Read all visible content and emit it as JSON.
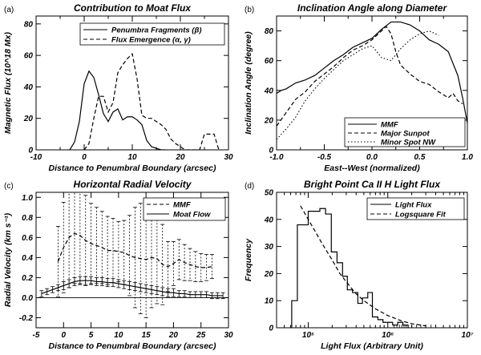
{
  "chart_data": [
    {
      "id": "a",
      "type": "line",
      "panel_label": "(a)",
      "title": "Contribution to Moat Flux",
      "xlabel": "Distance to Penumbral Boundary (arcsec)",
      "ylabel": "Magnetic Flux (10^18 Mx)",
      "xlim": [
        -10,
        30
      ],
      "ylim": [
        0,
        85
      ],
      "xticks": [
        "-10",
        "0",
        "10",
        "20",
        "30"
      ],
      "yticks": [
        "0",
        "20",
        "40",
        "60",
        "80"
      ],
      "legend": {
        "position": "top-right",
        "entries": [
          "Penumbra Fragments (β)",
          "Flux Emergence (α, γ)"
        ]
      },
      "series": [
        {
          "name": "Penumbra Fragments (β)",
          "style": "solid",
          "x": [
            -3,
            -2,
            -1,
            0,
            1,
            2,
            3,
            4,
            5,
            6,
            7,
            8,
            9,
            10,
            11,
            12,
            13,
            14,
            15,
            16,
            17
          ],
          "y": [
            0,
            5,
            18,
            42,
            50,
            46,
            35,
            23,
            18,
            24,
            26,
            19,
            21,
            21,
            19,
            16,
            6,
            2,
            1,
            0,
            0
          ]
        },
        {
          "name": "Flux Emergence (α, γ)",
          "style": "dashed",
          "x": [
            0,
            1,
            2,
            3,
            4,
            5,
            6,
            7,
            8,
            9,
            10,
            11,
            12,
            13,
            14,
            15,
            16,
            17,
            18,
            19,
            20,
            21,
            22,
            23,
            24,
            25,
            26,
            27,
            28
          ],
          "y": [
            0,
            4,
            20,
            34,
            34,
            24,
            30,
            49,
            54,
            58,
            61,
            45,
            22,
            20,
            20,
            18,
            16,
            13,
            7,
            4,
            2,
            0,
            0,
            0,
            0,
            10,
            10,
            10,
            0
          ]
        }
      ]
    },
    {
      "id": "b",
      "type": "line",
      "panel_label": "(b)",
      "title": "Inclination Angle along Diameter",
      "xlabel": "East--West (normalized)",
      "ylabel": "Inclination Angle (degree)",
      "xlim": [
        -1.0,
        1.0
      ],
      "ylim": [
        0,
        90
      ],
      "xticks": [
        "-1.0",
        "-0.5",
        "0.0",
        "0.5",
        "1.0"
      ],
      "yticks": [
        "0",
        "20",
        "40",
        "60",
        "80"
      ],
      "legend": {
        "position": "bottom-right",
        "entries": [
          "MMF",
          "Major Sunpot",
          "Minor Spot NW"
        ]
      },
      "series": [
        {
          "name": "MMF",
          "style": "solid",
          "x": [
            -1.0,
            -0.95,
            -0.9,
            -0.8,
            -0.7,
            -0.6,
            -0.5,
            -0.4,
            -0.3,
            -0.2,
            -0.1,
            0.0,
            0.1,
            0.2,
            0.3,
            0.4,
            0.5,
            0.6,
            0.7,
            0.8,
            0.9,
            0.95,
            1.0
          ],
          "y": [
            38,
            40,
            41,
            45,
            47,
            50,
            55,
            60,
            64,
            69,
            72,
            75,
            81,
            86,
            86,
            84,
            80,
            74,
            71,
            66,
            50,
            35,
            18
          ]
        },
        {
          "name": "Major Sunpot",
          "style": "dashed",
          "x": [
            -1.0,
            -0.9,
            -0.8,
            -0.7,
            -0.6,
            -0.5,
            -0.4,
            -0.3,
            -0.2,
            -0.1,
            0.0,
            0.1,
            0.15,
            0.2,
            0.25,
            0.3,
            0.4,
            0.5,
            0.6,
            0.7,
            0.8,
            0.85,
            0.9,
            0.95
          ],
          "y": [
            16,
            25,
            34,
            39,
            46,
            51,
            56,
            62,
            67,
            70,
            74,
            80,
            83,
            78,
            66,
            57,
            51,
            46,
            44,
            39,
            35,
            38,
            33,
            31
          ]
        },
        {
          "name": "Minor Spot NW",
          "style": "dotted",
          "x": [
            -1.0,
            -0.9,
            -0.8,
            -0.7,
            -0.6,
            -0.5,
            -0.4,
            -0.3,
            -0.2,
            -0.1,
            0.0,
            0.1,
            0.2,
            0.3,
            0.4,
            0.5,
            0.6,
            0.7
          ],
          "y": [
            7,
            14,
            22,
            33,
            41,
            48,
            54,
            60,
            64,
            68,
            70,
            62,
            60,
            68,
            74,
            78,
            80,
            77
          ]
        }
      ]
    },
    {
      "id": "c",
      "type": "line",
      "panel_label": "(c)",
      "title": "Horizontal Radial Velocity",
      "xlabel": "Distance to Penumbral Boundary (arcsec)",
      "ylabel": "Radial Velocity (km s⁻¹)",
      "xlim": [
        -5,
        30
      ],
      "ylim": [
        -0.3,
        1.05
      ],
      "xticks": [
        "-5",
        "0",
        "5",
        "10",
        "15",
        "20",
        "25",
        "30"
      ],
      "yticks": [
        "-0.2",
        "0.0",
        "0.2",
        "0.4",
        "0.6",
        "0.8",
        "1.0"
      ],
      "legend": {
        "position": "top-right",
        "entries": [
          "MMF",
          "Moat Flow"
        ]
      },
      "series": [
        {
          "name": "MMF",
          "style": "dashed",
          "error_bars": true,
          "x": [
            -1,
            0,
            1,
            2,
            3,
            4,
            5,
            6,
            7,
            8,
            9,
            10,
            11,
            12,
            13,
            14,
            15,
            16,
            17,
            18,
            19,
            20,
            21,
            22,
            23,
            24,
            25,
            26,
            27
          ],
          "y": [
            0.36,
            0.5,
            0.6,
            0.64,
            0.62,
            0.57,
            0.54,
            0.52,
            0.5,
            0.47,
            0.47,
            0.46,
            0.45,
            0.42,
            0.4,
            0.39,
            0.38,
            0.4,
            0.39,
            0.33,
            0.31,
            0.34,
            0.38,
            0.35,
            0.33,
            0.31,
            0.3,
            0.3,
            0.31
          ],
          "err": [
            0.35,
            0.45,
            0.5,
            0.5,
            0.48,
            0.45,
            0.4,
            0.38,
            0.36,
            0.34,
            0.32,
            0.3,
            0.32,
            0.4,
            0.5,
            0.55,
            0.58,
            0.5,
            0.45,
            0.4,
            0.25,
            0.22,
            0.2,
            0.18,
            0.16,
            0.15,
            0.14,
            0.13,
            0.12
          ]
        },
        {
          "name": "Moat Flow",
          "style": "solid",
          "error_bars": true,
          "x": [
            -4,
            -3,
            -2,
            -1,
            0,
            1,
            2,
            3,
            4,
            5,
            6,
            7,
            8,
            9,
            10,
            11,
            12,
            13,
            14,
            15,
            16,
            17,
            18,
            19,
            20,
            21,
            22,
            23,
            24,
            25,
            26,
            27,
            28,
            29
          ],
          "y": [
            0.04,
            0.06,
            0.08,
            0.1,
            0.12,
            0.14,
            0.16,
            0.17,
            0.17,
            0.17,
            0.16,
            0.16,
            0.15,
            0.15,
            0.14,
            0.13,
            0.12,
            0.11,
            0.1,
            0.09,
            0.08,
            0.07,
            0.06,
            0.05,
            0.05,
            0.04,
            0.04,
            0.03,
            0.03,
            0.03,
            0.03,
            0.02,
            0.02,
            0.02
          ],
          "err": [
            0.03,
            0.03,
            0.03,
            0.03,
            0.04,
            0.04,
            0.04,
            0.04,
            0.04,
            0.04,
            0.04,
            0.04,
            0.04,
            0.04,
            0.04,
            0.04,
            0.04,
            0.04,
            0.04,
            0.04,
            0.04,
            0.04,
            0.04,
            0.04,
            0.04,
            0.03,
            0.03,
            0.03,
            0.03,
            0.03,
            0.03,
            0.03,
            0.03,
            0.03
          ]
        }
      ]
    },
    {
      "id": "d",
      "type": "line",
      "panel_label": "(d)",
      "title": "Bright Point Ca II H Light Flux",
      "xlabel": "Light Flux (Arbitrary Unit)",
      "ylabel": "Frequency",
      "xscale": "log",
      "xlim": [
        40000,
        10000000
      ],
      "ylim": [
        0,
        50
      ],
      "xticks": [
        "10⁵",
        "10⁶",
        "10⁷"
      ],
      "yticks": [
        "0",
        "10",
        "20",
        "30",
        "40",
        "50"
      ],
      "legend": {
        "position": "top-right",
        "entries": [
          "Light Flux",
          "Logsquare Fit"
        ]
      },
      "series": [
        {
          "name": "Light Flux",
          "style": "steps",
          "edges": [
            62000,
            73000,
            86000,
            100000,
            120000,
            140000,
            165000,
            195000,
            230000,
            270000,
            310000,
            360000,
            420000,
            480000,
            560000,
            640000,
            750000,
            870000,
            1000000,
            1150000,
            1330000,
            1550000,
            1800000
          ],
          "counts": [
            10,
            38,
            38,
            43,
            43,
            44,
            42,
            28,
            24,
            19,
            14,
            13,
            9,
            11,
            13,
            4,
            3,
            2,
            2,
            1,
            2,
            1
          ]
        },
        {
          "name": "Logsquare Fit",
          "style": "dashed",
          "x": [
            80000,
            100000,
            120000,
            150000,
            200000,
            250000,
            300000,
            400000,
            500000,
            700000,
            1000000,
            1500000,
            2000000,
            3000000
          ],
          "y": [
            45,
            40,
            36,
            31,
            25,
            20,
            17,
            12.5,
            10,
            7,
            4.5,
            2.5,
            1.5,
            0.7
          ]
        }
      ],
      "rug": [
        1200000,
        1300000,
        1400000,
        1500000,
        1600000,
        1700000,
        1800000,
        2000000,
        2300000,
        2600000,
        3000000,
        3500000,
        4000000
      ]
    }
  ]
}
